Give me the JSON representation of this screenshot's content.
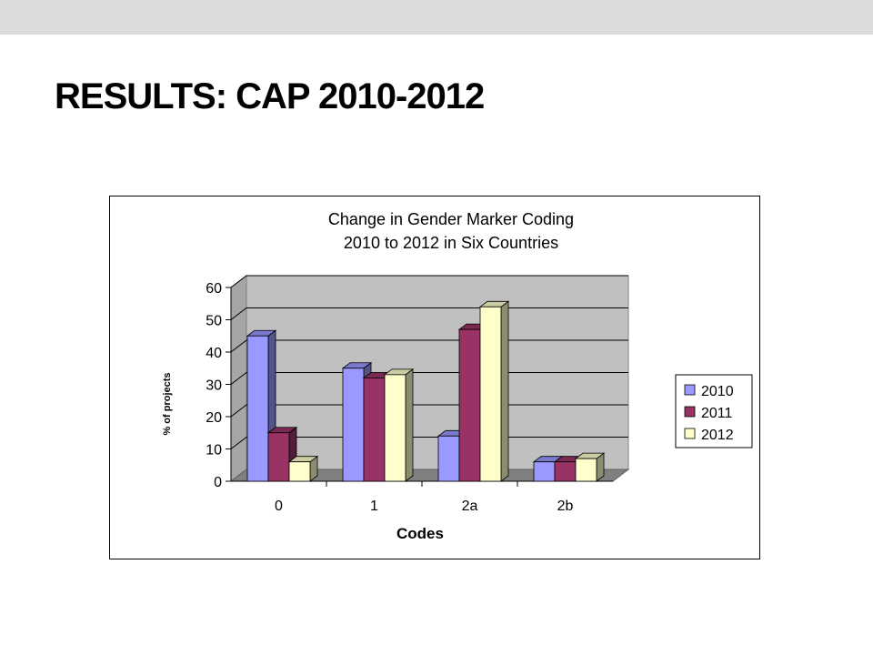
{
  "slide": {
    "title": "RESULTS: CAP 2010-2012"
  },
  "chart_data": {
    "type": "bar",
    "title_lines": [
      "Change in Gender Marker Coding",
      "2010 to 2012 in Six Countries"
    ],
    "xlabel": "Codes",
    "ylabel": "% of projects",
    "categories": [
      "0",
      "1",
      "2a",
      "2b"
    ],
    "series": [
      {
        "name": "2010",
        "values": [
          45,
          35,
          14,
          6
        ],
        "color": "#9999ff"
      },
      {
        "name": "2011",
        "values": [
          15,
          32,
          47,
          6
        ],
        "color": "#993366"
      },
      {
        "name": "2012",
        "values": [
          6,
          33,
          54,
          7
        ],
        "color": "#ffffcc"
      }
    ],
    "ylim": [
      0,
      60
    ],
    "yticks": [
      0,
      10,
      20,
      30,
      40,
      50,
      60
    ],
    "grid": true,
    "legend_position": "right",
    "wall_color": "#c0c0c0"
  }
}
